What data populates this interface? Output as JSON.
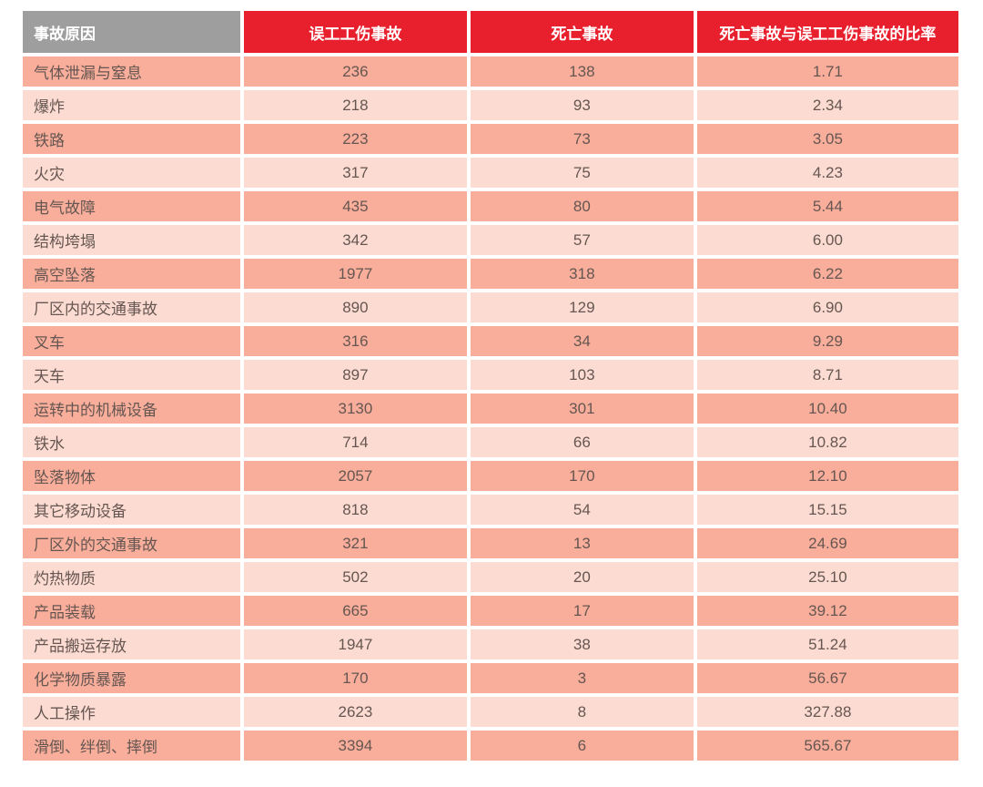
{
  "table": {
    "header": {
      "cause": "事故原因",
      "lost_time": "误工工伤事故",
      "fatal": "死亡事故",
      "ratio": "死亡事故与误工工伤事故的比率"
    },
    "rows": [
      {
        "cause": "气体泄漏与窒息",
        "lost_time": "236",
        "fatal": "138",
        "ratio": "1.71"
      },
      {
        "cause": "爆炸",
        "lost_time": "218",
        "fatal": "93",
        "ratio": "2.34"
      },
      {
        "cause": "铁路",
        "lost_time": "223",
        "fatal": "73",
        "ratio": "3.05"
      },
      {
        "cause": "火灾",
        "lost_time": "317",
        "fatal": "75",
        "ratio": "4.23"
      },
      {
        "cause": "电气故障",
        "lost_time": "435",
        "fatal": "80",
        "ratio": "5.44"
      },
      {
        "cause": "结构垮塌",
        "lost_time": "342",
        "fatal": "57",
        "ratio": "6.00"
      },
      {
        "cause": "高空坠落",
        "lost_time": "1977",
        "fatal": "318",
        "ratio": "6.22"
      },
      {
        "cause": "厂区内的交通事故",
        "lost_time": "890",
        "fatal": "129",
        "ratio": "6.90"
      },
      {
        "cause": "叉车",
        "lost_time": "316",
        "fatal": "34",
        "ratio": "9.29"
      },
      {
        "cause": "天车",
        "lost_time": "897",
        "fatal": "103",
        "ratio": "8.71"
      },
      {
        "cause": "运转中的机械设备",
        "lost_time": "3130",
        "fatal": "301",
        "ratio": "10.40"
      },
      {
        "cause": "铁水",
        "lost_time": "714",
        "fatal": "66",
        "ratio": "10.82"
      },
      {
        "cause": "坠落物体",
        "lost_time": "2057",
        "fatal": "170",
        "ratio": "12.10"
      },
      {
        "cause": "其它移动设备",
        "lost_time": "818",
        "fatal": "54",
        "ratio": "15.15"
      },
      {
        "cause": "厂区外的交通事故",
        "lost_time": "321",
        "fatal": "13",
        "ratio": "24.69"
      },
      {
        "cause": "灼热物质",
        "lost_time": "502",
        "fatal": "20",
        "ratio": "25.10"
      },
      {
        "cause": "产品装载",
        "lost_time": "665",
        "fatal": "17",
        "ratio": "39.12"
      },
      {
        "cause": "产品搬运存放",
        "lost_time": "1947",
        "fatal": "38",
        "ratio": "51.24"
      },
      {
        "cause": "化学物质暴露",
        "lost_time": "170",
        "fatal": "3",
        "ratio": "56.67"
      },
      {
        "cause": "人工操作",
        "lost_time": "2623",
        "fatal": "8",
        "ratio": "327.88"
      },
      {
        "cause": "滑倒、绊倒、摔倒",
        "lost_time": "3394",
        "fatal": "6",
        "ratio": "565.67"
      }
    ]
  },
  "colors": {
    "header_gray": "#9e9e9e",
    "header_red": "#e8202d",
    "row_dark": "#f8ae9b",
    "row_light": "#fcdcd2",
    "body_text": "#665651",
    "header_text": "#ffffff"
  },
  "chart_data": {
    "type": "table",
    "title": "",
    "columns": [
      "事故原因",
      "误工工伤事故",
      "死亡事故",
      "死亡事故与误工工伤事故的比率"
    ],
    "rows": [
      [
        "气体泄漏与窒息",
        236,
        138,
        1.71
      ],
      [
        "爆炸",
        218,
        93,
        2.34
      ],
      [
        "铁路",
        223,
        73,
        3.05
      ],
      [
        "火灾",
        317,
        75,
        4.23
      ],
      [
        "电气故障",
        435,
        80,
        5.44
      ],
      [
        "结构垮塌",
        342,
        57,
        6.0
      ],
      [
        "高空坠落",
        1977,
        318,
        6.22
      ],
      [
        "厂区内的交通事故",
        890,
        129,
        6.9
      ],
      [
        "叉车",
        316,
        34,
        9.29
      ],
      [
        "天车",
        897,
        103,
        8.71
      ],
      [
        "运转中的机械设备",
        3130,
        301,
        10.4
      ],
      [
        "铁水",
        714,
        66,
        10.82
      ],
      [
        "坠落物体",
        2057,
        170,
        12.1
      ],
      [
        "其它移动设备",
        818,
        54,
        15.15
      ],
      [
        "厂区外的交通事故",
        321,
        13,
        24.69
      ],
      [
        "灼热物质",
        502,
        20,
        25.1
      ],
      [
        "产品装载",
        665,
        17,
        39.12
      ],
      [
        "产品搬运存放",
        1947,
        38,
        51.24
      ],
      [
        "化学物质暴露",
        170,
        3,
        56.67
      ],
      [
        "人工操作",
        2623,
        8,
        327.88
      ],
      [
        "滑倒、绊倒、摔倒",
        3394,
        6,
        565.67
      ]
    ]
  }
}
